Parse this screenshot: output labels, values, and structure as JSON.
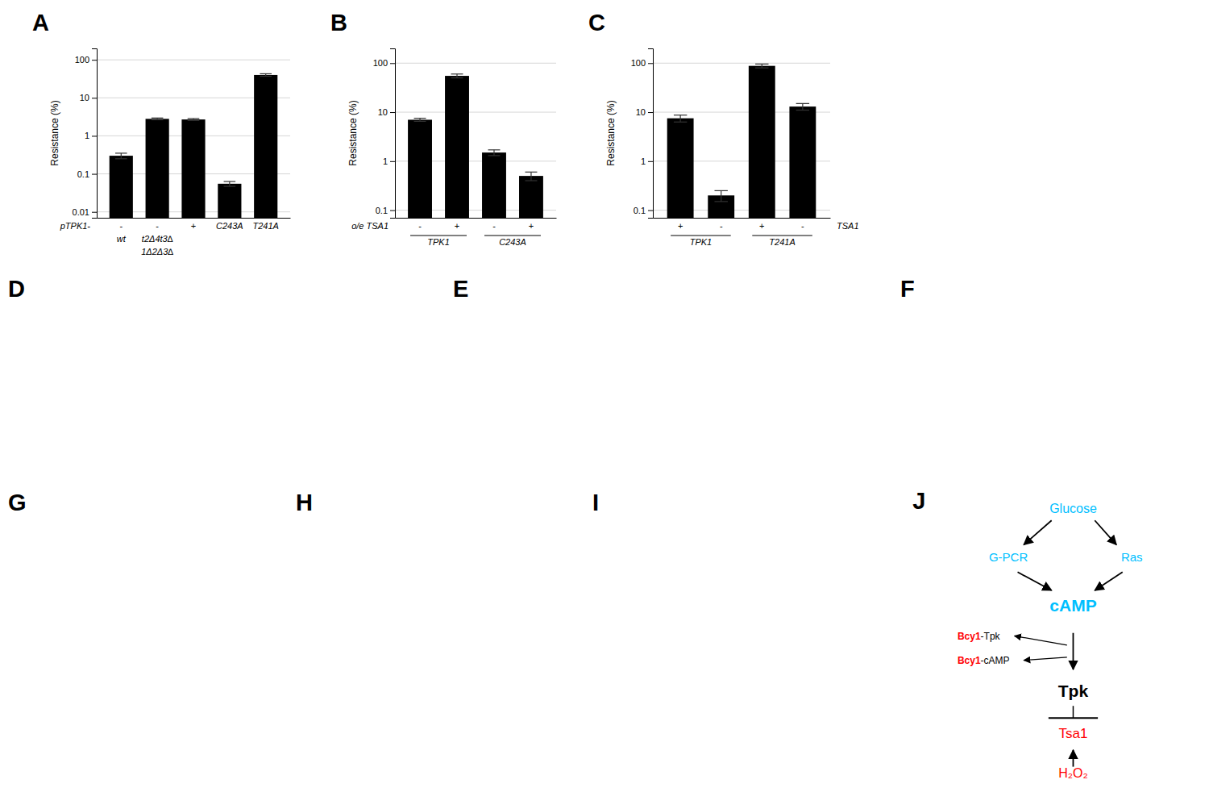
{
  "chart_data": [
    {
      "type": "bar",
      "title": "A",
      "categories": [
        "-",
        "-",
        "+",
        "C243A",
        "T241A"
      ],
      "values": [
        0.3,
        2.8,
        2.7,
        0.055,
        40.0
      ],
      "errors": [
        0.05,
        0.15,
        0.15,
        0.008,
        3.0
      ],
      "color": "#000000",
      "ylabel": "Resistance (%)",
      "log": "y",
      "ylim": [
        0.007,
        200
      ],
      "yticks": [
        0.01,
        0.1,
        1,
        10,
        100
      ],
      "grid": true,
      "annotations": [
        {
          "text": "pTPK1-"
        },
        {
          "labels": [
            "wt",
            "t2Δ4t3∆",
            null,
            null,
            null
          ]
        },
        {
          "labels": [
            null,
            "1Δ2Δ3∆",
            null,
            null,
            null
          ]
        }
      ]
    },
    {
      "type": "bar",
      "title": "B",
      "categories": [
        "-",
        "+",
        "-",
        "+"
      ],
      "values": [
        7.0,
        55.0,
        1.5,
        0.5
      ],
      "errors": [
        0.5,
        5.0,
        0.2,
        0.1
      ],
      "color": "#000000",
      "ylabel": "Resistance (%)",
      "log": "y",
      "ylim": [
        0.07,
        200
      ],
      "yticks": [
        0.1,
        1,
        10,
        100
      ],
      "grid": true,
      "annotations": [
        {
          "text": "o/e TSA1"
        },
        {
          "groups": [
            "TPK1",
            "C243A"
          ]
        }
      ]
    },
    {
      "type": "bar",
      "title": "C",
      "categories": [
        "+",
        "-",
        "+",
        "-"
      ],
      "values": [
        7.5,
        0.2,
        88.0,
        13.0
      ],
      "errors": [
        1.2,
        0.05,
        8.0,
        2.0
      ],
      "color": "#000000",
      "ylabel": "Resistance (%)",
      "log": "y",
      "ylim": [
        0.07,
        200
      ],
      "yticks": [
        0.1,
        1,
        10,
        100
      ],
      "grid": true,
      "annotations": [
        {
          "text": "TSA1"
        },
        {
          "groups": [
            "TPK1",
            "T241A"
          ]
        }
      ]
    },
    {
      "type": "image",
      "title": "D"
    },
    {
      "type": "image",
      "title": "E"
    },
    {
      "type": "image",
      "title": "F"
    },
    {
      "type": "image",
      "title": "G"
    },
    {
      "type": "image",
      "title": "H"
    },
    {
      "type": "image",
      "title": "I"
    },
    {
      "type": "diagram",
      "title": "J",
      "annotations": [
        {
          "text": "Glucose",
          "color": "#00bfff"
        },
        {
          "text": "G-PCR",
          "color": "#00bfff"
        },
        {
          "text": "Ras",
          "color": "#00bfff"
        },
        {
          "text": "cAMP",
          "color": "#00bfff"
        },
        {
          "text": "Bcy1",
          "color": "#ff0000"
        },
        {
          "text": "-Tpk",
          "color": "#000000"
        },
        {
          "text": "Bcy1",
          "color": "#ff0000"
        },
        {
          "text": "-cAMP",
          "color": "#000000"
        },
        {
          "text": "Tpk",
          "color": "#000000"
        },
        {
          "text": "Tsa1",
          "color": "#ff0000"
        },
        {
          "text": "H₂O₂",
          "color": "#ff0000"
        }
      ]
    }
  ]
}
